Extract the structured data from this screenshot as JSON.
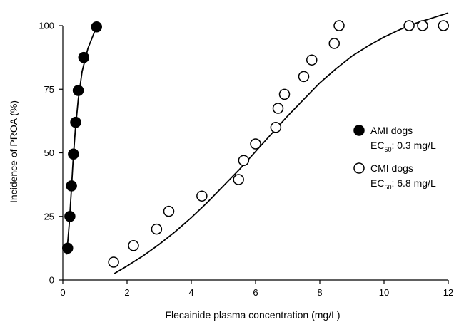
{
  "chart_data": {
    "type": "scatter",
    "xlabel": "Flecainide plasma concentration (mg/L)",
    "ylabel": "Incidence of PROA (%)",
    "xlim": [
      0,
      12
    ],
    "ylim": [
      0,
      100
    ],
    "x_ticks": [
      "0",
      "2",
      "4",
      "6",
      "8",
      "10",
      "12"
    ],
    "y_ticks": [
      "0",
      "25",
      "50",
      "75",
      "100"
    ],
    "grid": false,
    "legend_position": "right-middle",
    "series": [
      {
        "name": "AMI dogs",
        "ec50_prefix": "EC",
        "ec50_sub": "50",
        "ec50_value": ": 0.3 mg/L",
        "marker": "filled-circle",
        "points": [
          {
            "x": 0.15,
            "y": 12.5
          },
          {
            "x": 0.22,
            "y": 25
          },
          {
            "x": 0.27,
            "y": 37
          },
          {
            "x": 0.33,
            "y": 49.5
          },
          {
            "x": 0.4,
            "y": 62
          },
          {
            "x": 0.48,
            "y": 74.5
          },
          {
            "x": 0.65,
            "y": 87.5
          },
          {
            "x": 1.05,
            "y": 99.5
          }
        ],
        "curve": [
          {
            "x": 0.12,
            "y": 10
          },
          {
            "x": 0.2,
            "y": 22
          },
          {
            "x": 0.26,
            "y": 34
          },
          {
            "x": 0.32,
            "y": 47
          },
          {
            "x": 0.39,
            "y": 59
          },
          {
            "x": 0.48,
            "y": 71
          },
          {
            "x": 0.6,
            "y": 82
          },
          {
            "x": 0.78,
            "y": 91
          },
          {
            "x": 1.0,
            "y": 98
          }
        ]
      },
      {
        "name": "CMI dogs",
        "ec50_prefix": "EC",
        "ec50_sub": "50",
        "ec50_value": ": 6.8 mg/L",
        "marker": "open-circle",
        "points": [
          {
            "x": 1.58,
            "y": 7
          },
          {
            "x": 2.2,
            "y": 13.5
          },
          {
            "x": 2.92,
            "y": 20
          },
          {
            "x": 3.3,
            "y": 27
          },
          {
            "x": 4.33,
            "y": 33
          },
          {
            "x": 5.47,
            "y": 39.5
          },
          {
            "x": 5.63,
            "y": 47
          },
          {
            "x": 6.0,
            "y": 53.5
          },
          {
            "x": 6.63,
            "y": 60
          },
          {
            "x": 6.7,
            "y": 67.5
          },
          {
            "x": 6.9,
            "y": 73
          },
          {
            "x": 7.5,
            "y": 80
          },
          {
            "x": 7.75,
            "y": 86.5
          },
          {
            "x": 8.45,
            "y": 93
          },
          {
            "x": 8.6,
            "y": 100
          },
          {
            "x": 10.78,
            "y": 100
          },
          {
            "x": 11.2,
            "y": 100
          },
          {
            "x": 11.85,
            "y": 100
          }
        ],
        "curve": [
          {
            "x": 1.6,
            "y": 2.5
          },
          {
            "x": 2.0,
            "y": 5.5
          },
          {
            "x": 2.5,
            "y": 9.5
          },
          {
            "x": 3.0,
            "y": 14
          },
          {
            "x": 3.5,
            "y": 19
          },
          {
            "x": 4.0,
            "y": 24.5
          },
          {
            "x": 4.5,
            "y": 30.5
          },
          {
            "x": 5.0,
            "y": 37
          },
          {
            "x": 5.5,
            "y": 43.5
          },
          {
            "x": 6.0,
            "y": 50.5
          },
          {
            "x": 6.5,
            "y": 57.5
          },
          {
            "x": 7.0,
            "y": 64.5
          },
          {
            "x": 7.5,
            "y": 71
          },
          {
            "x": 8.0,
            "y": 77.5
          },
          {
            "x": 8.5,
            "y": 83
          },
          {
            "x": 9.0,
            "y": 88
          },
          {
            "x": 9.5,
            "y": 92
          },
          {
            "x": 10.0,
            "y": 95.5
          },
          {
            "x": 10.5,
            "y": 98.5
          },
          {
            "x": 11.0,
            "y": 101
          },
          {
            "x": 11.5,
            "y": 103
          },
          {
            "x": 12.0,
            "y": 105
          }
        ]
      }
    ]
  }
}
